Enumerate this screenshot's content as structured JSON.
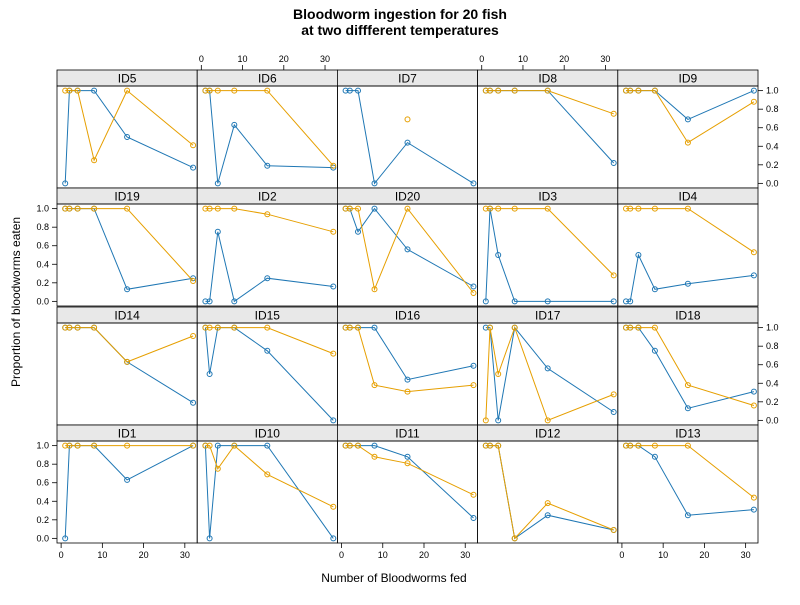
{
  "chart_data": {
    "type": "line",
    "title": "Bloodworm ingestion for 20 fish",
    "subtitle": "at two diffferent temperatures",
    "xlabel": "Number of Bloodworms fed",
    "ylabel": "Proportion of bloodworms eaten",
    "xlim": [
      -1,
      33
    ],
    "ylim": [
      -0.05,
      1.05
    ],
    "x_ticks": [
      0,
      10,
      20,
      30
    ],
    "y_ticks": [
      0.0,
      0.2,
      0.4,
      0.6,
      0.8,
      1.0
    ],
    "x_tick_labels": [
      "0",
      "10",
      "20",
      "30"
    ],
    "y_tick_labels": [
      "0.0",
      "0.2",
      "0.4",
      "0.6",
      "0.8",
      "1.0"
    ],
    "grid": false,
    "legend": "none",
    "layout": {
      "columns": 5,
      "rows": 4,
      "strip_fill": "#e8e8e8"
    },
    "series_styles": [
      {
        "color": "#1f77b4"
      },
      {
        "color": "#e69f00"
      }
    ],
    "x": [
      1,
      2,
      4,
      8,
      16,
      32
    ],
    "panels": [
      {
        "id": "ID5",
        "series": [
          {
            "values": [
              0.0,
              1.0,
              1.0,
              1.0,
              0.5,
              0.17
            ]
          },
          {
            "values": [
              1.0,
              1.0,
              1.0,
              0.25,
              1.0,
              0.41
            ]
          }
        ]
      },
      {
        "id": "ID6",
        "series": [
          {
            "values": [
              1.0,
              1.0,
              0.0,
              0.63,
              0.19,
              0.17
            ]
          },
          {
            "values": [
              1.0,
              1.0,
              1.0,
              1.0,
              1.0,
              0.19
            ]
          }
        ]
      },
      {
        "id": "ID7",
        "series": [
          {
            "values": [
              1.0,
              1.0,
              1.0,
              0.0,
              0.44,
              0.0
            ]
          },
          {
            "values": [
              null,
              null,
              null,
              null,
              0.69,
              null
            ]
          }
        ]
      },
      {
        "id": "ID8",
        "series": [
          {
            "values": [
              1.0,
              1.0,
              1.0,
              1.0,
              1.0,
              0.22
            ]
          },
          {
            "values": [
              1.0,
              1.0,
              1.0,
              1.0,
              1.0,
              0.75
            ]
          }
        ]
      },
      {
        "id": "ID9",
        "series": [
          {
            "values": [
              1.0,
              1.0,
              1.0,
              1.0,
              0.69,
              1.0
            ]
          },
          {
            "values": [
              1.0,
              1.0,
              1.0,
              1.0,
              0.44,
              0.88
            ]
          }
        ]
      },
      {
        "id": "ID19",
        "series": [
          {
            "values": [
              1.0,
              1.0,
              1.0,
              1.0,
              0.13,
              0.25
            ]
          },
          {
            "values": [
              1.0,
              1.0,
              1.0,
              1.0,
              1.0,
              0.22
            ]
          }
        ]
      },
      {
        "id": "ID2",
        "series": [
          {
            "values": [
              0.0,
              0.0,
              0.75,
              0.0,
              0.25,
              0.16
            ]
          },
          {
            "values": [
              1.0,
              1.0,
              1.0,
              1.0,
              0.94,
              0.75
            ]
          }
        ]
      },
      {
        "id": "ID20",
        "series": [
          {
            "values": [
              1.0,
              1.0,
              0.75,
              1.0,
              0.56,
              0.16
            ]
          },
          {
            "values": [
              1.0,
              1.0,
              1.0,
              0.13,
              1.0,
              0.09
            ]
          }
        ]
      },
      {
        "id": "ID3",
        "series": [
          {
            "values": [
              0.0,
              1.0,
              0.5,
              0.0,
              0.0,
              0.0
            ]
          },
          {
            "values": [
              1.0,
              1.0,
              1.0,
              1.0,
              1.0,
              0.28
            ]
          }
        ]
      },
      {
        "id": "ID4",
        "series": [
          {
            "values": [
              0.0,
              0.0,
              0.5,
              0.13,
              0.19,
              0.28
            ]
          },
          {
            "values": [
              1.0,
              1.0,
              1.0,
              1.0,
              1.0,
              0.53
            ]
          }
        ]
      },
      {
        "id": "ID14",
        "series": [
          {
            "values": [
              1.0,
              1.0,
              1.0,
              1.0,
              0.63,
              0.19
            ]
          },
          {
            "values": [
              1.0,
              1.0,
              1.0,
              1.0,
              0.63,
              0.91
            ]
          }
        ]
      },
      {
        "id": "ID15",
        "series": [
          {
            "values": [
              1.0,
              0.5,
              1.0,
              1.0,
              0.75,
              0.0
            ]
          },
          {
            "values": [
              1.0,
              1.0,
              1.0,
              1.0,
              1.0,
              0.72
            ]
          }
        ]
      },
      {
        "id": "ID16",
        "series": [
          {
            "values": [
              1.0,
              1.0,
              1.0,
              1.0,
              0.44,
              0.59
            ]
          },
          {
            "values": [
              1.0,
              1.0,
              1.0,
              0.38,
              0.31,
              0.38
            ]
          }
        ]
      },
      {
        "id": "ID17",
        "series": [
          {
            "values": [
              1.0,
              1.0,
              0.0,
              1.0,
              0.56,
              0.09
            ]
          },
          {
            "values": [
              0.0,
              1.0,
              0.5,
              1.0,
              0.0,
              0.28
            ]
          }
        ]
      },
      {
        "id": "ID18",
        "series": [
          {
            "values": [
              1.0,
              1.0,
              1.0,
              0.75,
              0.13,
              0.31
            ]
          },
          {
            "values": [
              1.0,
              1.0,
              1.0,
              1.0,
              0.38,
              0.16
            ]
          }
        ]
      },
      {
        "id": "ID1",
        "series": [
          {
            "values": [
              0.0,
              1.0,
              1.0,
              1.0,
              0.63,
              1.0
            ]
          },
          {
            "values": [
              1.0,
              1.0,
              1.0,
              1.0,
              1.0,
              1.0
            ]
          }
        ]
      },
      {
        "id": "ID10",
        "series": [
          {
            "values": [
              1.0,
              0.0,
              1.0,
              1.0,
              1.0,
              0.0
            ]
          },
          {
            "values": [
              1.0,
              1.0,
              0.75,
              1.0,
              0.69,
              0.34
            ]
          }
        ]
      },
      {
        "id": "ID11",
        "series": [
          {
            "values": [
              1.0,
              1.0,
              1.0,
              1.0,
              0.88,
              0.22
            ]
          },
          {
            "values": [
              1.0,
              1.0,
              1.0,
              0.88,
              0.81,
              0.47
            ]
          }
        ]
      },
      {
        "id": "ID12",
        "series": [
          {
            "values": [
              1.0,
              1.0,
              1.0,
              0.0,
              0.25,
              0.09
            ]
          },
          {
            "values": [
              1.0,
              1.0,
              1.0,
              0.0,
              0.38,
              0.09
            ]
          }
        ]
      },
      {
        "id": "ID13",
        "series": [
          {
            "values": [
              1.0,
              1.0,
              1.0,
              0.88,
              0.25,
              0.31
            ]
          },
          {
            "values": [
              1.0,
              1.0,
              1.0,
              1.0,
              1.0,
              0.44
            ]
          }
        ]
      }
    ]
  }
}
